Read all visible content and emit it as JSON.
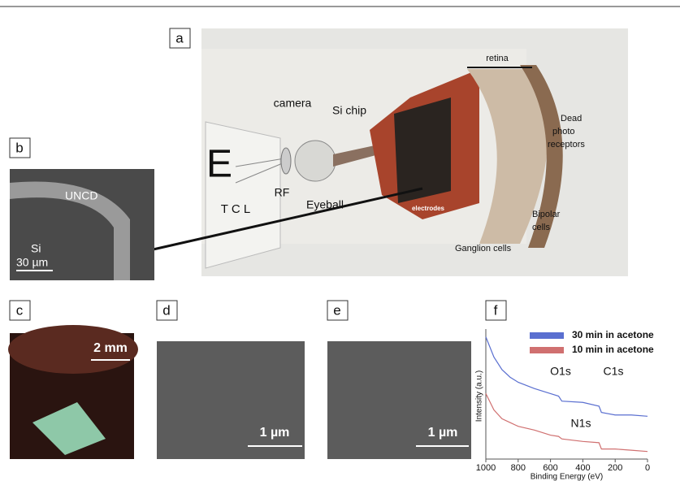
{
  "panels": {
    "a": {
      "label": "a",
      "eye_chart": [
        "E",
        "T C L"
      ],
      "camera": "camera",
      "si_chip": "Si chip",
      "rf": "RF",
      "eyeball": "Eyeball",
      "retina": "retina",
      "dead_photo": [
        "Dead",
        "photo",
        "receptors"
      ],
      "bipolar": [
        "Bipolar",
        "cells"
      ],
      "ganglion": "Ganglion  cells",
      "electrodes": "electrodes"
    },
    "b": {
      "label": "b",
      "uncd": "UNCD",
      "si": "Si",
      "scale": "30 µm"
    },
    "c": {
      "label": "c",
      "scale": "2 mm"
    },
    "d": {
      "label": "d",
      "scale": "1 µm"
    },
    "e": {
      "label": "e",
      "scale": "1 µm"
    },
    "f": {
      "label": "f"
    }
  },
  "chart_data": {
    "type": "line",
    "x_label": "Binding Energy (eV)",
    "y_label": "Intensity (a.u.)",
    "x": [
      1000,
      950,
      900,
      850,
      800,
      700,
      600,
      550,
      530,
      400,
      300,
      285,
      200,
      100,
      0
    ],
    "series": [
      {
        "name": "30 min in acetone",
        "color": "#5a6fd0",
        "values": [
          97,
          81,
          71,
          65,
          61,
          56,
          52,
          50,
          46,
          45,
          42,
          37,
          35,
          35,
          34
        ]
      },
      {
        "name": "10 min in acetone",
        "color": "#d07070",
        "values": [
          52,
          39,
          32,
          29,
          26,
          23,
          19,
          18,
          16,
          14,
          13,
          8,
          8,
          7,
          6
        ]
      }
    ],
    "annotations": [
      "O1s",
      "C1s",
      "N1s"
    ],
    "xlim": [
      1000,
      0
    ],
    "xticks": [
      1000,
      800,
      600,
      400,
      200,
      0
    ],
    "ylim": [
      0,
      100
    ]
  }
}
